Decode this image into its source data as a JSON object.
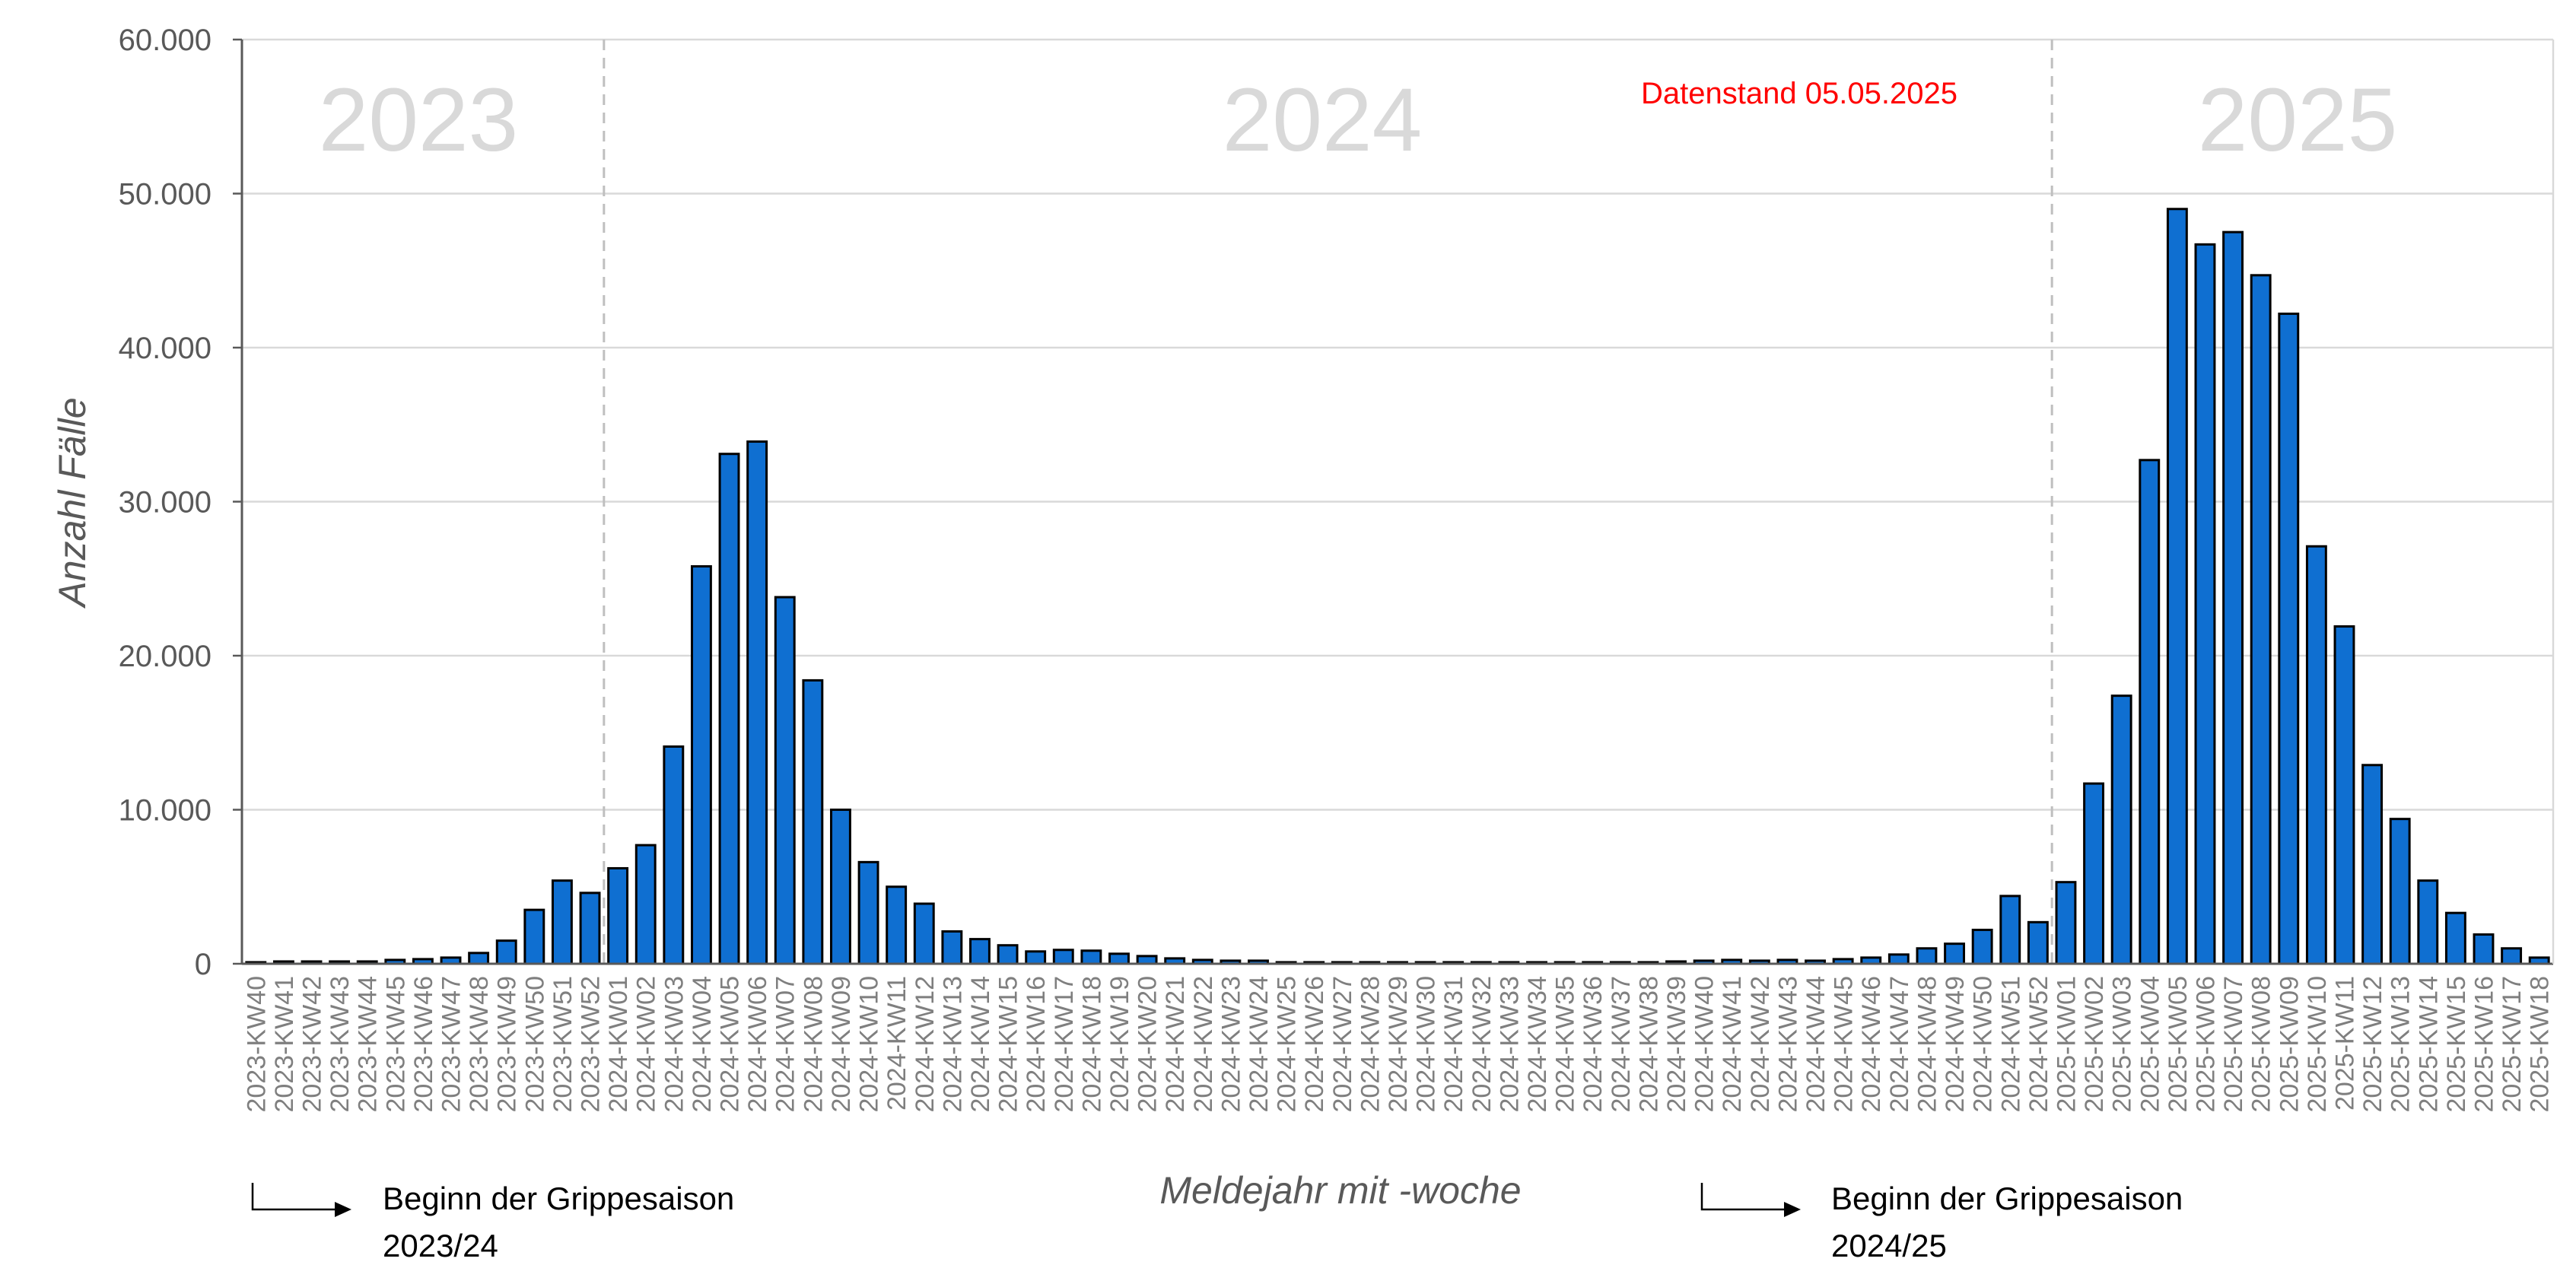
{
  "chart_data": {
    "type": "bar",
    "ylabel": "Anzahl Fälle",
    "xlabel": "Meldejahr mit -woche",
    "ylim": [
      0,
      60000
    ],
    "yticks": [
      0,
      10000,
      20000,
      30000,
      40000,
      50000,
      60000
    ],
    "ytick_labels": [
      "0",
      "10.000",
      "20.000",
      "30.000",
      "40.000",
      "50.000",
      "60.000"
    ],
    "grid": true,
    "bar_color": "#0f6fd1",
    "bar_edge_color": "#000000",
    "categories": [
      "2023-KW40",
      "2023-KW41",
      "2023-KW42",
      "2023-KW43",
      "2023-KW44",
      "2023-KW45",
      "2023-KW46",
      "2023-KW47",
      "2023-KW48",
      "2023-KW49",
      "2023-KW50",
      "2023-KW51",
      "2023-KW52",
      "2024-KW01",
      "2024-KW02",
      "2024-KW03",
      "2024-KW04",
      "2024-KW05",
      "2024-KW06",
      "2024-KW07",
      "2024-KW08",
      "2024-KW09",
      "2024-KW10",
      "2024-KW11",
      "2024-KW12",
      "2024-KW13",
      "2024-KW14",
      "2024-KW15",
      "2024-KW16",
      "2024-KW17",
      "2024-KW18",
      "2024-KW19",
      "2024-KW20",
      "2024-KW21",
      "2024-KW22",
      "2024-KW23",
      "2024-KW24",
      "2024-KW25",
      "2024-KW26",
      "2024-KW27",
      "2024-KW28",
      "2024-KW29",
      "2024-KW30",
      "2024-KW31",
      "2024-KW32",
      "2024-KW33",
      "2024-KW34",
      "2024-KW35",
      "2024-KW36",
      "2024-KW37",
      "2024-KW38",
      "2024-KW39",
      "2024-KW40",
      "2024-KW41",
      "2024-KW42",
      "2024-KW43",
      "2024-KW44",
      "2024-KW45",
      "2024-KW46",
      "2024-KW47",
      "2024-KW48",
      "2024-KW49",
      "2024-KW50",
      "2024-KW51",
      "2024-KW52",
      "2025-KW01",
      "2025-KW02",
      "2025-KW03",
      "2025-KW04",
      "2025-KW05",
      "2025-KW06",
      "2025-KW07",
      "2025-KW08",
      "2025-KW09",
      "2025-KW10",
      "2025-KW11",
      "2025-KW12",
      "2025-KW13",
      "2025-KW14",
      "2025-KW15",
      "2025-KW16",
      "2025-KW17",
      "2025-KW18"
    ],
    "values": [
      100,
      150,
      150,
      150,
      150,
      250,
      300,
      400,
      700,
      1500,
      3500,
      5400,
      4600,
      6200,
      7700,
      14100,
      25800,
      33100,
      33900,
      23800,
      18400,
      10000,
      6600,
      5000,
      3900,
      2100,
      1600,
      1200,
      800,
      900,
      850,
      650,
      500,
      350,
      250,
      200,
      200,
      100,
      100,
      100,
      100,
      100,
      100,
      100,
      100,
      100,
      100,
      100,
      100,
      100,
      100,
      150,
      200,
      250,
      200,
      250,
      200,
      300,
      400,
      600,
      1000,
      1300,
      2200,
      4400,
      2700,
      5300,
      11700,
      17400,
      32700,
      49000,
      46700,
      47500,
      44700,
      42200,
      27100,
      21900,
      12900,
      9400,
      5400,
      3300,
      1900,
      1000,
      400
    ],
    "year_labels": [
      "2023",
      "2024",
      "2025"
    ],
    "annotation": "Datenstand 05.05.2025",
    "season_starts": [
      {
        "line1": "Beginn der Grippesaison",
        "line2": "2023/24"
      },
      {
        "line1": "Beginn der Grippesaison",
        "line2": "2024/25"
      }
    ]
  }
}
